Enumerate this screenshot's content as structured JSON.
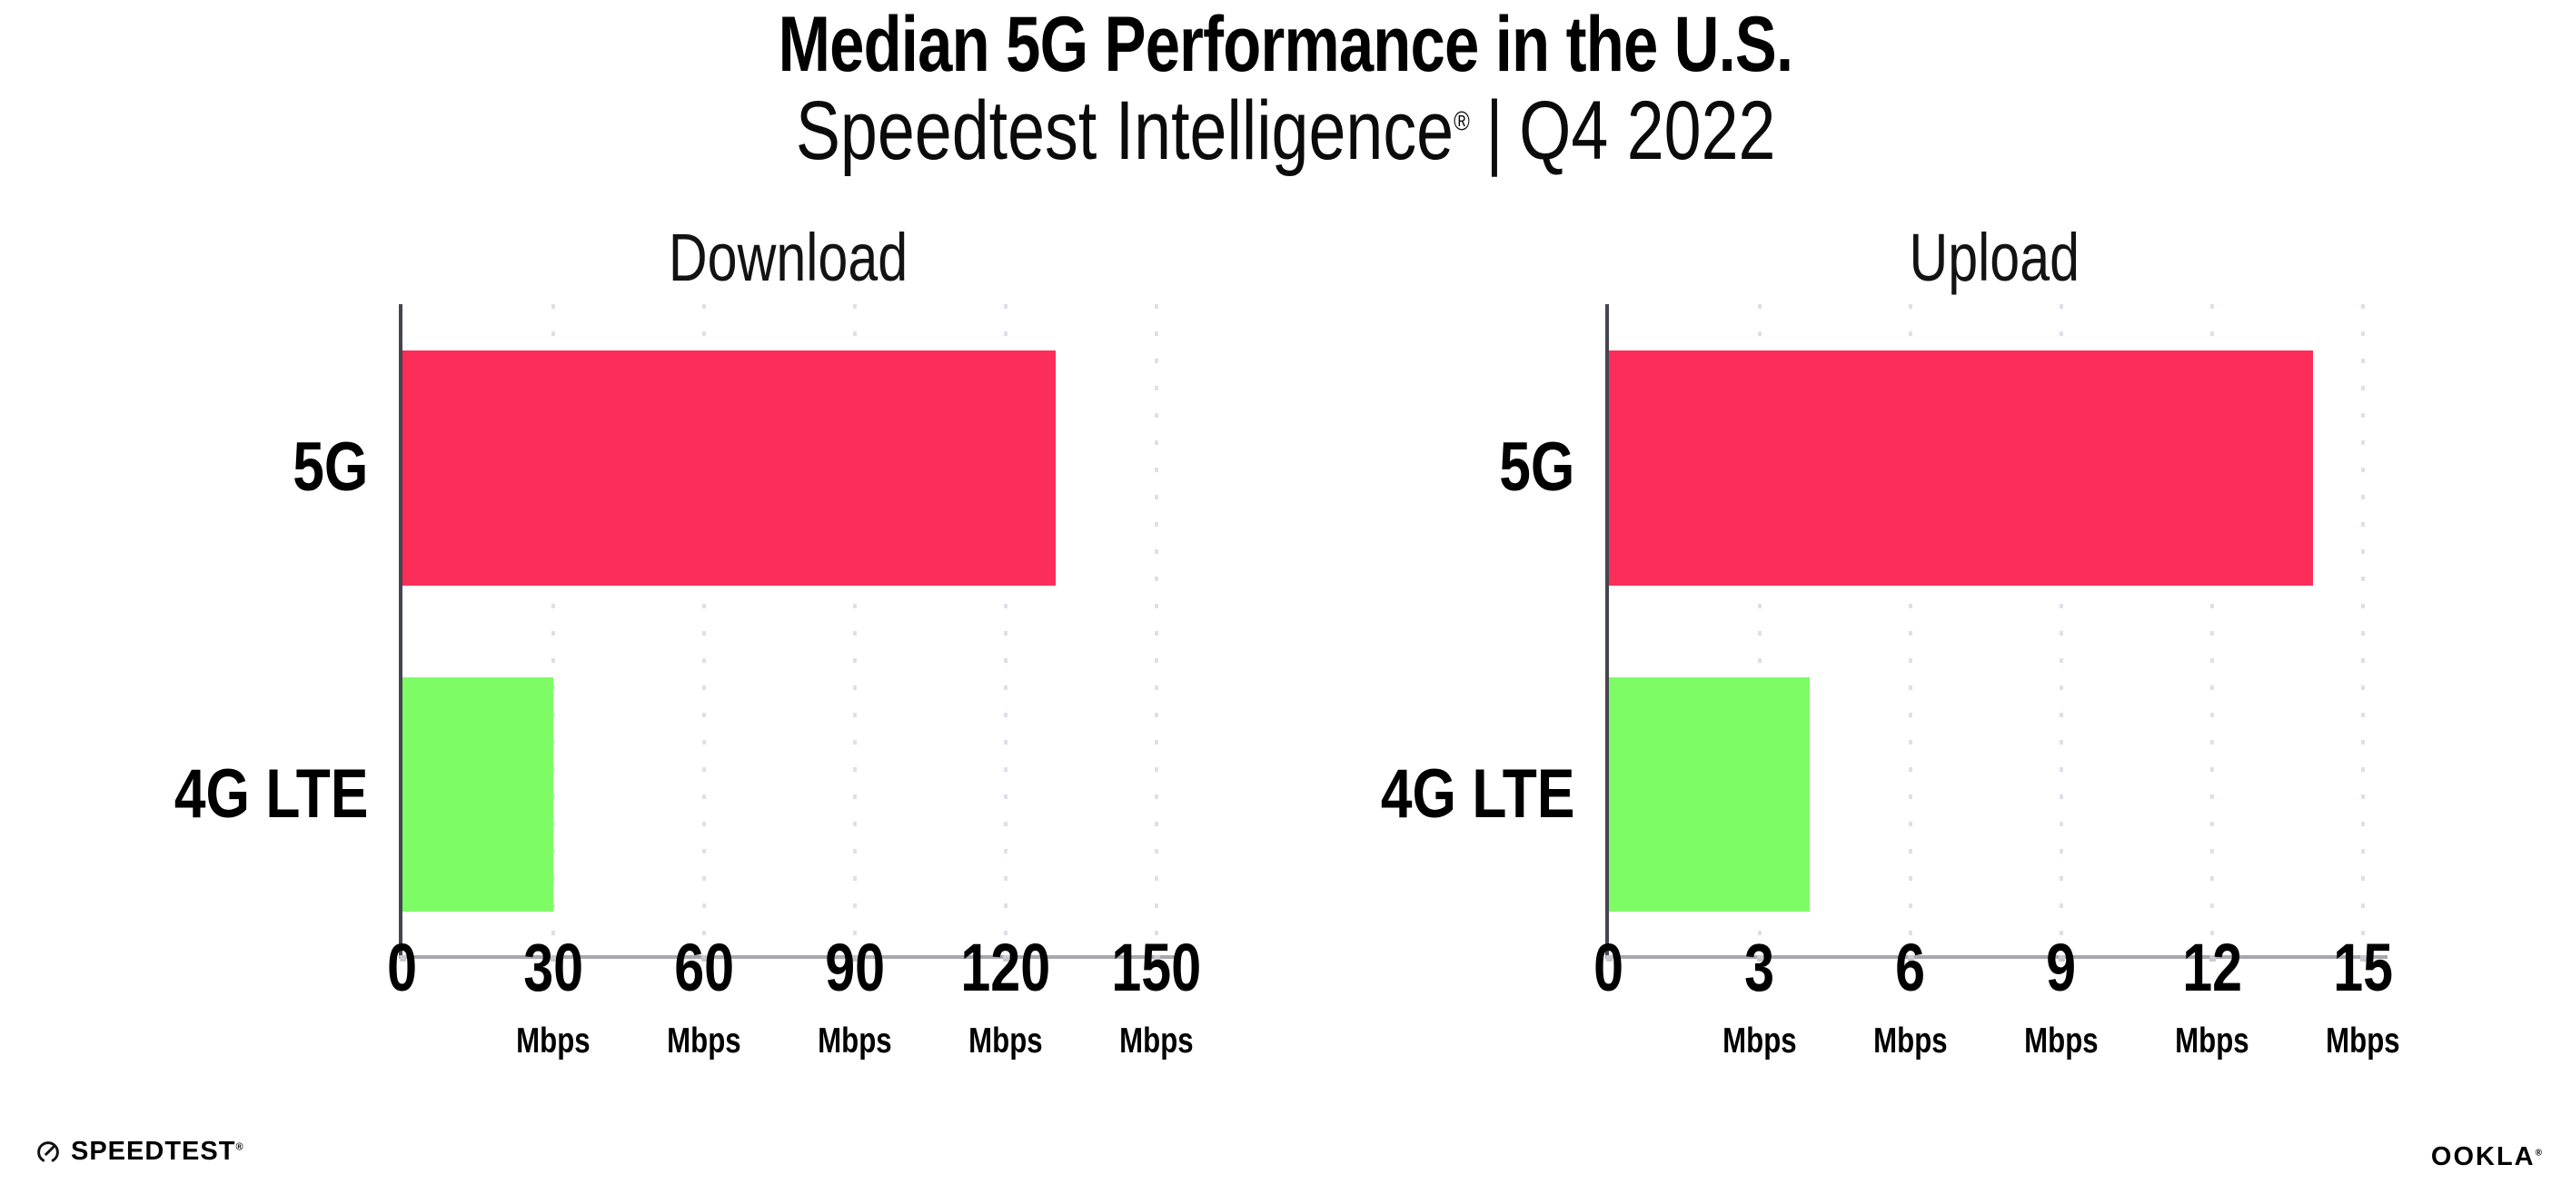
{
  "header": {
    "title": "Median 5G Performance in the U.S.",
    "subtitle_brand": "Speedtest Intelligence",
    "subtitle_registered": "®",
    "subtitle_separator": "|",
    "subtitle_period": "Q4 2022"
  },
  "chart_data": [
    {
      "type": "bar",
      "orientation": "horizontal",
      "title": "Download",
      "categories": [
        "5G",
        "4G LTE"
      ],
      "values": [
        130,
        30
      ],
      "unit": "Mbps",
      "xlim": [
        0,
        150
      ],
      "ticks": [
        0,
        30,
        60,
        90,
        120,
        150
      ],
      "tick_unit_label": "Mbps",
      "grid": "dotted-vertical",
      "legend": "none",
      "bar_colors": [
        "#fc2d58",
        "#7efc66"
      ]
    },
    {
      "type": "bar",
      "orientation": "horizontal",
      "title": "Upload",
      "categories": [
        "5G",
        "4G LTE"
      ],
      "values": [
        14,
        4
      ],
      "unit": "Mbps",
      "xlim": [
        0,
        15
      ],
      "ticks": [
        0,
        3,
        6,
        9,
        12,
        15
      ],
      "tick_unit_label": "Mbps",
      "grid": "dotted-vertical",
      "legend": "none",
      "bar_colors": [
        "#fc2d58",
        "#7efc66"
      ]
    }
  ],
  "footer": {
    "speedtest_label": "SPEEDTEST",
    "speedtest_mark": "®",
    "ookla_label": "OOKLA",
    "ookla_mark": "®"
  },
  "colors": {
    "bar_5g": "#fc2d58",
    "bar_4g_lte": "#7efc66",
    "x_axis": "#a7a7ad",
    "y_axis": "#45454f",
    "gridline_dots": "#dfdfe9",
    "text": "#000000",
    "background": "#ffffff"
  }
}
